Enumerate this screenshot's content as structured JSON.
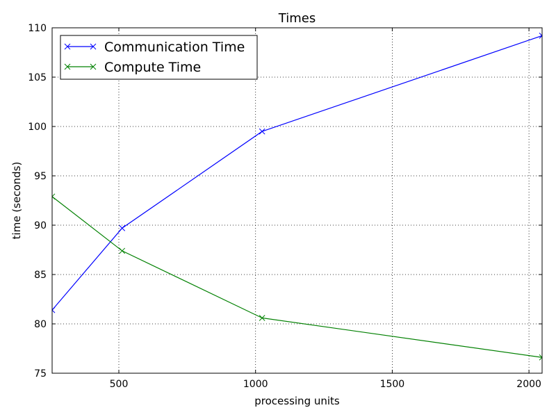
{
  "chart_data": {
    "type": "line",
    "title": "Times",
    "xlabel": "processing units",
    "ylabel": "time (seconds)",
    "xlim": [
      256,
      2048
    ],
    "ylim": [
      75,
      110
    ],
    "xticks": [
      500,
      1000,
      1500,
      2000
    ],
    "yticks": [
      75,
      80,
      85,
      90,
      95,
      100,
      105,
      110
    ],
    "grid": true,
    "legend_position": "top-left",
    "x": [
      256,
      512,
      1024,
      2048
    ],
    "series": [
      {
        "name": "Communication Time",
        "color": "#0000ff",
        "marker": "x",
        "values": [
          81.4,
          89.7,
          99.5,
          109.2
        ]
      },
      {
        "name": "Compute Time",
        "color": "#008000",
        "marker": "x",
        "values": [
          92.9,
          87.4,
          80.6,
          76.6
        ]
      }
    ]
  }
}
